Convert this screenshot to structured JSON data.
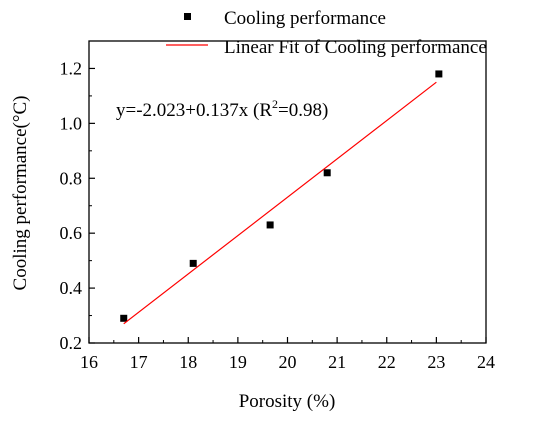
{
  "chart_data": {
    "type": "scatter",
    "xlabel": "Porosity (%)",
    "ylabel": "Cooling performance(°C)",
    "xlim": [
      16,
      24
    ],
    "ylim": [
      0.2,
      1.3
    ],
    "xticks": [
      16,
      17,
      18,
      19,
      20,
      21,
      22,
      23,
      24
    ],
    "yticks": [
      0.2,
      0.4,
      0.6,
      0.8,
      1.0,
      1.2
    ],
    "xtick_labels": [
      "16",
      "17",
      "18",
      "19",
      "20",
      "21",
      "22",
      "23",
      "24"
    ],
    "ytick_labels": [
      "0.2",
      "0.4",
      "0.6",
      "0.8",
      "1.0",
      "1.2"
    ],
    "grid": false,
    "legend_position": "top-right",
    "series": [
      {
        "name": "Cooling performance",
        "kind": "scatter",
        "marker": "square",
        "color": "#000000",
        "x": [
          16.7,
          18.1,
          19.65,
          20.8,
          23.05
        ],
        "y": [
          0.29,
          0.49,
          0.63,
          0.82,
          1.18
        ]
      },
      {
        "name": "Linear Fit of Cooling performance",
        "kind": "line",
        "color": "#ff0000",
        "x": [
          16.7,
          23.0
        ],
        "y": [
          0.27,
          1.15
        ]
      }
    ],
    "annotation": {
      "main": "y=-2.023+0.137x (R",
      "sup": "2",
      "tail": "=0.98)"
    }
  }
}
